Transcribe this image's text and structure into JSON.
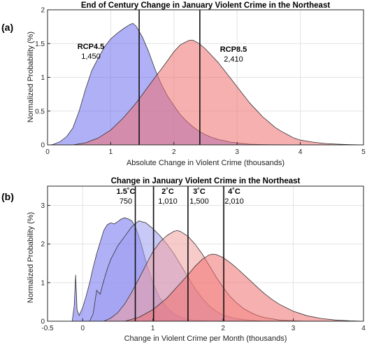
{
  "chart_data": [
    {
      "panel_label": "(a)",
      "type": "area",
      "title": "End of Century Change in January Violent Crime in the Northeast",
      "xlabel": "Absolute Change in Violent Crime (thousands)",
      "ylabel": "Normalized Probability (%)",
      "xlim": [
        0,
        5
      ],
      "ylim": [
        0,
        2
      ],
      "xticks": [
        0,
        1,
        2,
        3,
        4,
        5
      ],
      "xtick_labels": [
        "0",
        "1",
        "2",
        "3",
        "4",
        "5"
      ],
      "yticks": [
        0,
        0.5,
        1,
        1.5,
        2
      ],
      "ytick_labels": [
        "0",
        "0.5",
        "1",
        "1.5",
        "2"
      ],
      "grid": true,
      "series": [
        {
          "name": "RCP4.5",
          "color": "#7070f0",
          "median": 1.45,
          "annotation_value": "1,450",
          "annotation_bold": true,
          "x": [
            0.05,
            0.1,
            0.2,
            0.3,
            0.4,
            0.5,
            0.6,
            0.7,
            0.8,
            0.9,
            1.0,
            1.1,
            1.2,
            1.3,
            1.35,
            1.4,
            1.5,
            1.6,
            1.7,
            1.8,
            1.9,
            2.0,
            2.1,
            2.2,
            2.3,
            2.4,
            2.5,
            2.6,
            2.7,
            2.8,
            2.9,
            3.0,
            3.1,
            3.2,
            3.4,
            3.6,
            3.8,
            4.0
          ],
          "y": [
            0.0,
            0.01,
            0.05,
            0.12,
            0.25,
            0.5,
            0.82,
            1.1,
            1.28,
            1.45,
            1.57,
            1.65,
            1.72,
            1.78,
            1.8,
            1.76,
            1.6,
            1.38,
            1.12,
            0.9,
            0.72,
            0.58,
            0.45,
            0.35,
            0.27,
            0.2,
            0.15,
            0.11,
            0.08,
            0.06,
            0.04,
            0.03,
            0.02,
            0.01,
            0.005,
            0.002,
            0.001,
            0.0
          ]
        },
        {
          "name": "RCP8.5",
          "color": "#f07070",
          "median": 2.41,
          "annotation_value": "2,410",
          "annotation_bold": true,
          "x": [
            0.4,
            0.6,
            0.8,
            1.0,
            1.2,
            1.4,
            1.6,
            1.7,
            1.8,
            1.9,
            2.0,
            2.1,
            2.2,
            2.25,
            2.3,
            2.4,
            2.5,
            2.6,
            2.7,
            2.8,
            2.9,
            3.0,
            3.1,
            3.2,
            3.3,
            3.4,
            3.5,
            3.6,
            3.7,
            3.8,
            3.9,
            4.0,
            4.2,
            4.4,
            4.6,
            4.8,
            5.0
          ],
          "y": [
            0.0,
            0.03,
            0.1,
            0.22,
            0.4,
            0.62,
            0.87,
            1.0,
            1.12,
            1.25,
            1.38,
            1.48,
            1.53,
            1.55,
            1.55,
            1.5,
            1.42,
            1.32,
            1.22,
            1.1,
            0.98,
            0.86,
            0.74,
            0.62,
            0.52,
            0.42,
            0.34,
            0.26,
            0.2,
            0.15,
            0.1,
            0.07,
            0.04,
            0.02,
            0.01,
            0.004,
            0.0
          ]
        }
      ]
    },
    {
      "panel_label": "(b)",
      "type": "area",
      "title": "Change in January Violent Crime in the Northeast",
      "xlabel": "Change in Violent Crime per Month (thousands)",
      "ylabel": "Normalized Probability (%)",
      "xlim": [
        -0.5,
        4
      ],
      "ylim": [
        0,
        3.5
      ],
      "xticks": [
        -0.5,
        0,
        1,
        2,
        3,
        4
      ],
      "xtick_labels": [
        "-0.5",
        "0",
        "1",
        "2",
        "3",
        "4"
      ],
      "yticks": [
        0,
        1,
        2,
        3
      ],
      "ytick_labels": [
        "0",
        "1",
        "2",
        "3"
      ],
      "grid": true,
      "series": [
        {
          "name": "1.5˚C",
          "color": "#7070f0",
          "median": 0.75,
          "annotation_value": "750",
          "annotation_bold": true,
          "x": [
            -0.15,
            -0.12,
            -0.1,
            -0.08,
            -0.05,
            0.0,
            0.05,
            0.1,
            0.15,
            0.2,
            0.25,
            0.3,
            0.35,
            0.4,
            0.45,
            0.5,
            0.55,
            0.6,
            0.65,
            0.7,
            0.75,
            0.8,
            0.85,
            0.9,
            1.0,
            1.1,
            1.2,
            1.3,
            1.4,
            1.5,
            1.6,
            1.8,
            2.0
          ],
          "y": [
            0.0,
            0.4,
            1.2,
            0.3,
            0.15,
            0.35,
            0.65,
            1.0,
            1.4,
            1.75,
            2.05,
            2.35,
            2.5,
            2.55,
            2.52,
            2.58,
            2.65,
            2.68,
            2.65,
            2.6,
            2.45,
            2.2,
            1.9,
            1.55,
            1.0,
            0.6,
            0.35,
            0.2,
            0.1,
            0.05,
            0.02,
            0.005,
            0.0
          ]
        },
        {
          "name": "2˚C",
          "color": "#9c9cf2",
          "median": 1.01,
          "annotation_value": "1,010",
          "annotation_bold": true,
          "x": [
            0.1,
            0.15,
            0.2,
            0.25,
            0.3,
            0.35,
            0.4,
            0.5,
            0.6,
            0.7,
            0.8,
            0.9,
            1.0,
            1.1,
            1.2,
            1.3,
            1.4,
            1.5,
            1.6,
            1.7,
            1.8,
            1.9,
            2.0,
            2.2,
            2.4,
            2.6
          ],
          "y": [
            0.0,
            0.2,
            0.8,
            0.7,
            1.05,
            1.35,
            1.6,
            1.95,
            2.2,
            2.45,
            2.6,
            2.55,
            2.4,
            2.22,
            2.0,
            1.75,
            1.45,
            1.15,
            0.85,
            0.6,
            0.4,
            0.26,
            0.16,
            0.06,
            0.02,
            0.0
          ]
        },
        {
          "name": "3˚C",
          "color": "#f2a0a0",
          "median": 1.5,
          "annotation_value": "1,500",
          "annotation_bold": true,
          "x": [
            0.3,
            0.4,
            0.5,
            0.6,
            0.7,
            0.8,
            0.9,
            1.0,
            1.1,
            1.2,
            1.3,
            1.35,
            1.4,
            1.5,
            1.6,
            1.7,
            1.8,
            1.9,
            2.0,
            2.1,
            2.2,
            2.3,
            2.4,
            2.5,
            2.6,
            2.8,
            3.0,
            3.2
          ],
          "y": [
            0.0,
            0.08,
            0.22,
            0.45,
            0.75,
            1.1,
            1.45,
            1.8,
            2.05,
            2.22,
            2.33,
            2.35,
            2.32,
            2.2,
            2.0,
            1.75,
            1.45,
            1.15,
            0.88,
            0.64,
            0.46,
            0.32,
            0.22,
            0.14,
            0.09,
            0.03,
            0.01,
            0.0
          ]
        },
        {
          "name": "4˚C",
          "color": "#f07070",
          "median": 2.01,
          "annotation_value": "2,010",
          "annotation_bold": true,
          "x": [
            0.6,
            0.8,
            1.0,
            1.2,
            1.4,
            1.5,
            1.6,
            1.7,
            1.8,
            1.85,
            1.9,
            2.0,
            2.1,
            2.2,
            2.3,
            2.4,
            2.5,
            2.6,
            2.7,
            2.8,
            3.0,
            3.2,
            3.4,
            3.6,
            3.8,
            4.0
          ],
          "y": [
            0.0,
            0.1,
            0.3,
            0.6,
            1.0,
            1.2,
            1.42,
            1.6,
            1.72,
            1.74,
            1.73,
            1.65,
            1.52,
            1.37,
            1.2,
            1.03,
            0.86,
            0.7,
            0.56,
            0.44,
            0.26,
            0.14,
            0.07,
            0.03,
            0.01,
            0.0
          ]
        }
      ]
    }
  ]
}
